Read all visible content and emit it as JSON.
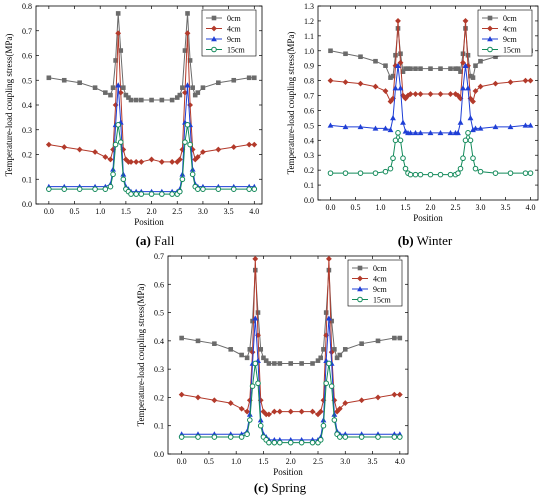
{
  "chart_data": [
    {
      "id": "fall",
      "type": "line",
      "caption_letter": "(a)",
      "caption_text": "Fall",
      "xlabel": "Position",
      "ylabel": "Temperature-load coupling stress(MPa)",
      "xlim": [
        -0.25,
        4.15
      ],
      "ylim": [
        0,
        0.8
      ],
      "xticks": [
        "0.0",
        "0.5",
        "1.0",
        "1.5",
        "2.0",
        "2.5",
        "3.0",
        "3.5",
        "4.0"
      ],
      "yticks": [
        "0.0",
        "0.1",
        "0.2",
        "0.3",
        "0.4",
        "0.5",
        "0.6",
        "0.7",
        "0.8"
      ],
      "legend_position": "top-right",
      "series": [
        {
          "name": "0cm",
          "color": "#6b6b6b",
          "marker": "square",
          "x": [
            0.0,
            0.3,
            0.6,
            0.9,
            1.1,
            1.2,
            1.25,
            1.3,
            1.35,
            1.4,
            1.45,
            1.5,
            1.55,
            1.6,
            1.7,
            1.8,
            2.0,
            2.2,
            2.4,
            2.5,
            2.55,
            2.6,
            2.65,
            2.7,
            2.75,
            2.8,
            2.85,
            2.9,
            3.0,
            3.3,
            3.6,
            3.9,
            4.0
          ],
          "y": [
            0.51,
            0.5,
            0.49,
            0.47,
            0.45,
            0.44,
            0.47,
            0.58,
            0.77,
            0.62,
            0.47,
            0.44,
            0.43,
            0.42,
            0.42,
            0.42,
            0.42,
            0.42,
            0.42,
            0.43,
            0.44,
            0.47,
            0.62,
            0.77,
            0.58,
            0.47,
            0.44,
            0.45,
            0.47,
            0.49,
            0.5,
            0.51,
            0.51
          ]
        },
        {
          "name": "4cm",
          "color": "#b33a2b",
          "marker": "diamond",
          "x": [
            0.0,
            0.3,
            0.6,
            0.9,
            1.1,
            1.2,
            1.25,
            1.3,
            1.35,
            1.4,
            1.45,
            1.5,
            1.55,
            1.6,
            1.7,
            1.8,
            2.0,
            2.2,
            2.4,
            2.5,
            2.55,
            2.6,
            2.65,
            2.7,
            2.75,
            2.8,
            2.85,
            2.9,
            3.0,
            3.3,
            3.6,
            3.9,
            4.0
          ],
          "y": [
            0.24,
            0.23,
            0.22,
            0.21,
            0.19,
            0.18,
            0.22,
            0.4,
            0.69,
            0.45,
            0.22,
            0.18,
            0.17,
            0.17,
            0.17,
            0.17,
            0.18,
            0.17,
            0.17,
            0.17,
            0.18,
            0.22,
            0.45,
            0.69,
            0.4,
            0.22,
            0.18,
            0.19,
            0.21,
            0.22,
            0.23,
            0.24,
            0.24
          ]
        },
        {
          "name": "9cm",
          "color": "#1f3fd6",
          "marker": "triangle",
          "x": [
            0.0,
            0.3,
            0.6,
            0.9,
            1.1,
            1.2,
            1.25,
            1.3,
            1.35,
            1.4,
            1.45,
            1.5,
            1.55,
            1.6,
            1.7,
            1.8,
            2.0,
            2.2,
            2.4,
            2.5,
            2.55,
            2.6,
            2.65,
            2.7,
            2.75,
            2.8,
            2.85,
            2.9,
            3.0,
            3.3,
            3.6,
            3.9,
            4.0
          ],
          "y": [
            0.07,
            0.07,
            0.07,
            0.07,
            0.07,
            0.08,
            0.14,
            0.32,
            0.48,
            0.33,
            0.12,
            0.07,
            0.06,
            0.05,
            0.05,
            0.05,
            0.05,
            0.05,
            0.05,
            0.05,
            0.06,
            0.12,
            0.33,
            0.48,
            0.32,
            0.14,
            0.08,
            0.07,
            0.07,
            0.07,
            0.07,
            0.07,
            0.07
          ]
        },
        {
          "name": "15cm",
          "color": "#138a5a",
          "marker": "circle",
          "x": [
            0.0,
            0.3,
            0.6,
            0.9,
            1.1,
            1.2,
            1.25,
            1.3,
            1.35,
            1.4,
            1.45,
            1.5,
            1.55,
            1.6,
            1.7,
            1.8,
            2.0,
            2.2,
            2.4,
            2.5,
            2.55,
            2.6,
            2.65,
            2.7,
            2.75,
            2.8,
            2.85,
            2.9,
            3.0,
            3.3,
            3.6,
            3.9,
            4.0
          ],
          "y": [
            0.06,
            0.06,
            0.06,
            0.06,
            0.06,
            0.07,
            0.12,
            0.24,
            0.32,
            0.25,
            0.1,
            0.06,
            0.05,
            0.04,
            0.04,
            0.04,
            0.04,
            0.04,
            0.04,
            0.04,
            0.05,
            0.1,
            0.25,
            0.32,
            0.24,
            0.12,
            0.07,
            0.06,
            0.06,
            0.06,
            0.06,
            0.06,
            0.06
          ]
        }
      ]
    },
    {
      "id": "winter",
      "type": "line",
      "caption_letter": "(b)",
      "caption_text": "Winter",
      "xlabel": "Position",
      "ylabel": "Temperature-load coupling stress(MPa)",
      "xlim": [
        -0.25,
        4.15
      ],
      "ylim": [
        0,
        1.3
      ],
      "xticks": [
        "0.0",
        "0.5",
        "1.0",
        "1.5",
        "2.0",
        "2.5",
        "3.0",
        "3.5",
        "4.0"
      ],
      "yticks": [
        "0.0",
        "0.1",
        "0.2",
        "0.3",
        "0.4",
        "0.5",
        "0.6",
        "0.7",
        "0.8",
        "0.9",
        "1.0",
        "1.1",
        "1.2",
        "1.3"
      ],
      "legend_position": "top-right",
      "series": [
        {
          "name": "0cm",
          "color": "#6b6b6b",
          "marker": "square",
          "x": [
            0.0,
            0.3,
            0.6,
            0.9,
            1.1,
            1.2,
            1.25,
            1.3,
            1.35,
            1.4,
            1.45,
            1.5,
            1.55,
            1.6,
            1.7,
            1.8,
            2.0,
            2.2,
            2.4,
            2.5,
            2.55,
            2.6,
            2.65,
            2.7,
            2.75,
            2.8,
            2.85,
            2.9,
            3.0,
            3.3,
            3.6,
            3.9,
            4.0
          ],
          "y": [
            1.0,
            0.98,
            0.96,
            0.93,
            0.9,
            0.82,
            0.83,
            0.97,
            1.15,
            0.98,
            0.86,
            0.88,
            0.88,
            0.88,
            0.88,
            0.88,
            0.88,
            0.88,
            0.88,
            0.88,
            0.88,
            0.86,
            0.98,
            1.15,
            0.97,
            0.83,
            0.82,
            0.9,
            0.93,
            0.96,
            0.98,
            1.0,
            1.0
          ]
        },
        {
          "name": "4cm",
          "color": "#b33a2b",
          "marker": "diamond",
          "x": [
            0.0,
            0.3,
            0.6,
            0.9,
            1.1,
            1.2,
            1.25,
            1.3,
            1.35,
            1.4,
            1.45,
            1.5,
            1.55,
            1.6,
            1.7,
            1.8,
            2.0,
            2.2,
            2.4,
            2.5,
            2.55,
            2.6,
            2.65,
            2.7,
            2.75,
            2.8,
            2.85,
            2.9,
            3.0,
            3.3,
            3.6,
            3.9,
            4.0
          ],
          "y": [
            0.8,
            0.79,
            0.78,
            0.76,
            0.73,
            0.66,
            0.68,
            0.9,
            1.2,
            0.92,
            0.7,
            0.68,
            0.7,
            0.71,
            0.71,
            0.71,
            0.71,
            0.71,
            0.71,
            0.71,
            0.7,
            0.68,
            0.92,
            1.2,
            0.9,
            0.68,
            0.66,
            0.73,
            0.76,
            0.78,
            0.79,
            0.8,
            0.8
          ]
        },
        {
          "name": "9cm",
          "color": "#1f3fd6",
          "marker": "triangle",
          "x": [
            0.0,
            0.3,
            0.6,
            0.9,
            1.1,
            1.2,
            1.25,
            1.3,
            1.35,
            1.4,
            1.45,
            1.5,
            1.55,
            1.6,
            1.7,
            1.8,
            2.0,
            2.2,
            2.4,
            2.5,
            2.55,
            2.6,
            2.65,
            2.7,
            2.75,
            2.8,
            2.85,
            2.9,
            3.0,
            3.3,
            3.6,
            3.9,
            4.0
          ],
          "y": [
            0.5,
            0.49,
            0.49,
            0.48,
            0.48,
            0.47,
            0.55,
            0.75,
            0.9,
            0.75,
            0.52,
            0.46,
            0.45,
            0.45,
            0.45,
            0.45,
            0.45,
            0.45,
            0.45,
            0.45,
            0.45,
            0.52,
            0.75,
            0.9,
            0.75,
            0.55,
            0.47,
            0.48,
            0.48,
            0.49,
            0.49,
            0.5,
            0.5
          ]
        },
        {
          "name": "15cm",
          "color": "#138a5a",
          "marker": "circle",
          "x": [
            0.0,
            0.3,
            0.6,
            0.9,
            1.1,
            1.2,
            1.25,
            1.3,
            1.35,
            1.4,
            1.45,
            1.5,
            1.55,
            1.6,
            1.7,
            1.8,
            2.0,
            2.2,
            2.4,
            2.5,
            2.55,
            2.6,
            2.65,
            2.7,
            2.75,
            2.8,
            2.85,
            2.9,
            3.0,
            3.3,
            3.6,
            3.9,
            4.0
          ],
          "y": [
            0.18,
            0.18,
            0.18,
            0.18,
            0.19,
            0.21,
            0.28,
            0.4,
            0.45,
            0.4,
            0.28,
            0.21,
            0.18,
            0.17,
            0.17,
            0.17,
            0.17,
            0.17,
            0.17,
            0.17,
            0.18,
            0.21,
            0.28,
            0.4,
            0.45,
            0.4,
            0.28,
            0.21,
            0.19,
            0.18,
            0.18,
            0.18,
            0.18
          ]
        }
      ]
    },
    {
      "id": "spring",
      "type": "line",
      "caption_letter": "(c)",
      "caption_text": "Spring",
      "xlabel": "Position",
      "ylabel": "Temperature-load coupling stress(MPa)",
      "xlim": [
        -0.25,
        4.15
      ],
      "ylim": [
        0,
        0.7
      ],
      "xticks": [
        "0.0",
        "0.5",
        "1.0",
        "1.5",
        "2.0",
        "2.5",
        "3.0",
        "3.5",
        "4.0"
      ],
      "yticks": [
        "0.0",
        "0.1",
        "0.2",
        "0.3",
        "0.4",
        "0.5",
        "0.6",
        "0.7"
      ],
      "legend_position": "top-right",
      "series": [
        {
          "name": "0cm",
          "color": "#6b6b6b",
          "marker": "square",
          "x": [
            0.0,
            0.3,
            0.6,
            0.9,
            1.1,
            1.2,
            1.25,
            1.3,
            1.35,
            1.4,
            1.45,
            1.5,
            1.55,
            1.6,
            1.7,
            1.8,
            2.0,
            2.2,
            2.4,
            2.5,
            2.55,
            2.6,
            2.65,
            2.7,
            2.75,
            2.8,
            2.85,
            2.9,
            3.0,
            3.3,
            3.6,
            3.9,
            4.0
          ],
          "y": [
            0.41,
            0.4,
            0.39,
            0.37,
            0.35,
            0.34,
            0.37,
            0.47,
            0.65,
            0.5,
            0.37,
            0.34,
            0.33,
            0.32,
            0.32,
            0.32,
            0.32,
            0.32,
            0.32,
            0.33,
            0.34,
            0.37,
            0.5,
            0.65,
            0.47,
            0.37,
            0.34,
            0.35,
            0.37,
            0.39,
            0.4,
            0.41,
            0.41
          ]
        },
        {
          "name": "4cm",
          "color": "#b33a2b",
          "marker": "diamond",
          "x": [
            0.0,
            0.3,
            0.6,
            0.9,
            1.1,
            1.2,
            1.25,
            1.3,
            1.35,
            1.4,
            1.45,
            1.5,
            1.55,
            1.6,
            1.7,
            1.8,
            2.0,
            2.2,
            2.4,
            2.5,
            2.55,
            2.6,
            2.65,
            2.7,
            2.75,
            2.8,
            2.85,
            2.9,
            3.0,
            3.3,
            3.6,
            3.9,
            4.0
          ],
          "y": [
            0.21,
            0.2,
            0.19,
            0.18,
            0.16,
            0.15,
            0.19,
            0.36,
            0.69,
            0.42,
            0.19,
            0.15,
            0.14,
            0.14,
            0.15,
            0.15,
            0.15,
            0.15,
            0.15,
            0.14,
            0.15,
            0.19,
            0.42,
            0.69,
            0.36,
            0.19,
            0.15,
            0.16,
            0.18,
            0.19,
            0.2,
            0.21,
            0.21
          ]
        },
        {
          "name": "9cm",
          "color": "#1f3fd6",
          "marker": "triangle",
          "x": [
            0.0,
            0.3,
            0.6,
            0.9,
            1.1,
            1.2,
            1.25,
            1.3,
            1.35,
            1.4,
            1.45,
            1.5,
            1.55,
            1.6,
            1.7,
            1.8,
            2.0,
            2.2,
            2.4,
            2.5,
            2.55,
            2.6,
            2.65,
            2.7,
            2.75,
            2.8,
            2.85,
            2.9,
            3.0,
            3.3,
            3.6,
            3.9,
            4.0
          ],
          "y": [
            0.07,
            0.07,
            0.07,
            0.07,
            0.07,
            0.08,
            0.14,
            0.32,
            0.48,
            0.33,
            0.12,
            0.07,
            0.06,
            0.05,
            0.05,
            0.05,
            0.05,
            0.05,
            0.05,
            0.05,
            0.06,
            0.12,
            0.33,
            0.48,
            0.32,
            0.14,
            0.08,
            0.07,
            0.07,
            0.07,
            0.07,
            0.07,
            0.07
          ]
        },
        {
          "name": "15cm",
          "color": "#138a5a",
          "marker": "circle",
          "x": [
            0.0,
            0.3,
            0.6,
            0.9,
            1.1,
            1.2,
            1.25,
            1.3,
            1.35,
            1.4,
            1.45,
            1.5,
            1.55,
            1.6,
            1.7,
            1.8,
            2.0,
            2.2,
            2.4,
            2.5,
            2.55,
            2.6,
            2.65,
            2.7,
            2.75,
            2.8,
            2.85,
            2.9,
            3.0,
            3.3,
            3.6,
            3.9,
            4.0
          ],
          "y": [
            0.06,
            0.06,
            0.06,
            0.06,
            0.06,
            0.07,
            0.12,
            0.24,
            0.32,
            0.25,
            0.1,
            0.06,
            0.05,
            0.04,
            0.04,
            0.04,
            0.04,
            0.04,
            0.04,
            0.04,
            0.05,
            0.1,
            0.25,
            0.32,
            0.24,
            0.12,
            0.07,
            0.06,
            0.06,
            0.06,
            0.06,
            0.06,
            0.06
          ]
        }
      ]
    }
  ]
}
